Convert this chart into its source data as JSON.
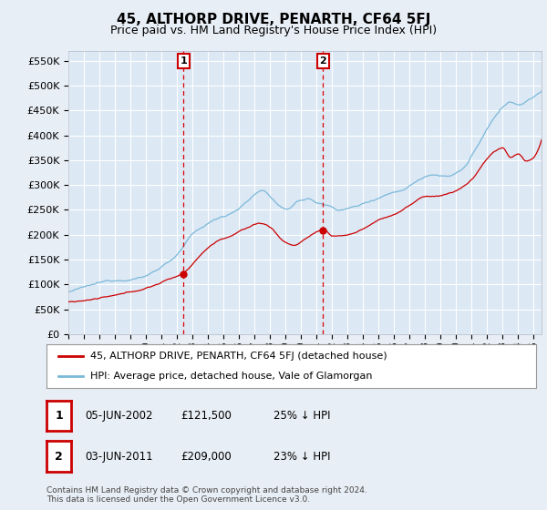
{
  "title": "45, ALTHORP DRIVE, PENARTH, CF64 5FJ",
  "subtitle": "Price paid vs. HM Land Registry's House Price Index (HPI)",
  "ylim": [
    0,
    570000
  ],
  "yticks": [
    0,
    50000,
    100000,
    150000,
    200000,
    250000,
    300000,
    350000,
    400000,
    450000,
    500000,
    550000
  ],
  "xlim_start": 1995,
  "xlim_end": 2025.5,
  "hpi_color": "#7ab8d9",
  "price_color": "#cc0000",
  "legend_line1": "45, ALTHORP DRIVE, PENARTH, CF64 5FJ (detached house)",
  "legend_line2": "HPI: Average price, detached house, Vale of Glamorgan",
  "table_row1": [
    "1",
    "05-JUN-2002",
    "£121,500",
    "25% ↓ HPI"
  ],
  "table_row2": [
    "2",
    "03-JUN-2011",
    "£209,000",
    "23% ↓ HPI"
  ],
  "footnote": "Contains HM Land Registry data © Crown copyright and database right 2024.\nThis data is licensed under the Open Government Licence v3.0.",
  "background_color": "#e8eef5",
  "plot_bg_color": "#dce8f4",
  "sale1_year": 2002.42,
  "sale1_price": 121500,
  "sale2_year": 2011.42,
  "sale2_price": 209000
}
